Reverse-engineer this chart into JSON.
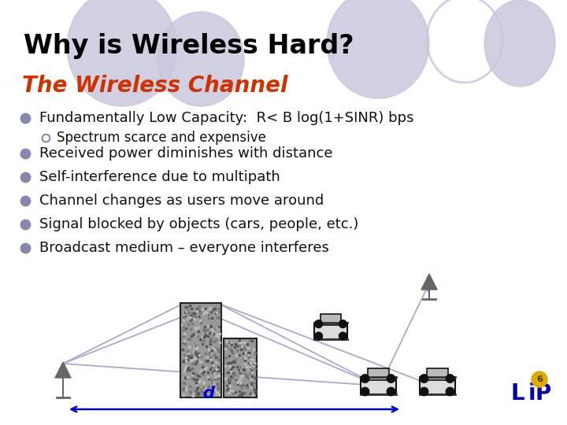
{
  "title": "Why is Wireless Hard?",
  "subtitle": "The Wireless Channel",
  "title_color": "#000000",
  "subtitle_color": "#cc3300",
  "background_color": "#ffffff",
  "bullet_color": "#8888aa",
  "bullet_points": [
    "Fundamentally Low Capacity:  R< B log(1+SINR) bps",
    "Received power diminishes with distance",
    "Self-interference due to multipath",
    "Channel changes as users move around",
    "Signal blocked by objects (cars, people, etc.)",
    "Broadcast medium – everyone interferes"
  ],
  "sub_bullet": "Spectrum scarce and expensive",
  "text_color": "#111111",
  "mp_color": "#aaaacc",
  "ant_color": "#666666",
  "building_color": "#aaaaaa",
  "arrow_color": "#0000cc"
}
